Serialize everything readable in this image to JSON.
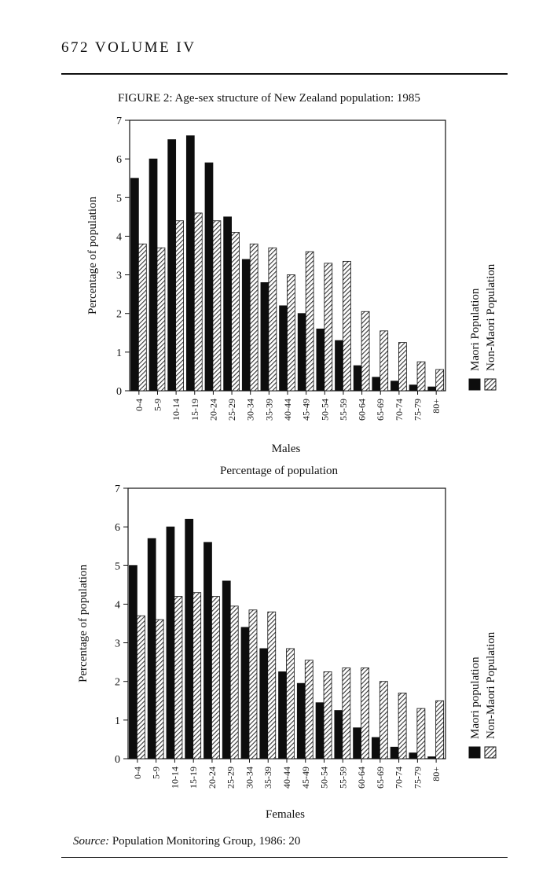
{
  "header": {
    "text": "672 VOLUME IV"
  },
  "figure_title": "FIGURE 2: Age-sex structure of New Zealand population: 1985",
  "source": {
    "label": "Source:",
    "text": "Population Monitoring Group, 1986: 20"
  },
  "colors": {
    "maori": "#0d0d0d",
    "non_maori_hatch": "#333333",
    "background": "#ffffff"
  },
  "chart_data": [
    {
      "type": "bar",
      "title": "",
      "xlabel": "Males",
      "ylabel": "Percentage of population",
      "ylim": [
        0,
        7
      ],
      "yticks": [
        "0",
        "1",
        "2",
        "3",
        "4",
        "5",
        "6",
        "7"
      ],
      "legend_position": "right",
      "categories": [
        "0-4",
        "5-9",
        "10-14",
        "15-19",
        "20-24",
        "25-29",
        "30-34",
        "35-39",
        "40-44",
        "45-49",
        "50-54",
        "55-59",
        "60-64",
        "65-69",
        "70-74",
        "75-79",
        "80+"
      ],
      "series": [
        {
          "name": "Maori Population",
          "pattern": "solid",
          "values": [
            5.5,
            6.0,
            6.5,
            6.6,
            5.9,
            4.5,
            3.4,
            2.8,
            2.2,
            2.0,
            1.6,
            1.3,
            0.65,
            0.35,
            0.25,
            0.15,
            0.1
          ]
        },
        {
          "name": "Non-Maori Population",
          "pattern": "hatched",
          "values": [
            3.8,
            3.7,
            4.4,
            4.6,
            4.4,
            4.1,
            3.8,
            3.7,
            3.0,
            3.6,
            3.3,
            3.35,
            2.05,
            1.55,
            1.25,
            0.75,
            0.55
          ]
        }
      ]
    },
    {
      "type": "bar",
      "title": "Percentage of population",
      "xlabel": "Females",
      "ylabel": "Percentage of population",
      "ylim": [
        0,
        7
      ],
      "yticks": [
        "0",
        "1",
        "2",
        "3",
        "4",
        "5",
        "6",
        "7"
      ],
      "legend_position": "right",
      "categories": [
        "0-4",
        "5-9",
        "10-14",
        "15-19",
        "20-24",
        "25-29",
        "30-34",
        "35-39",
        "40-44",
        "45-49",
        "50-54",
        "55-59",
        "60-64",
        "65-69",
        "70-74",
        "75-79",
        "80+"
      ],
      "series": [
        {
          "name": "Maori population",
          "pattern": "solid",
          "values": [
            5.0,
            5.7,
            6.0,
            6.2,
            5.6,
            4.6,
            3.4,
            2.85,
            2.25,
            1.95,
            1.45,
            1.25,
            0.8,
            0.55,
            0.3,
            0.15,
            0.05
          ]
        },
        {
          "name": "Non-Maori Population",
          "pattern": "hatched",
          "values": [
            3.7,
            3.6,
            4.2,
            4.3,
            4.2,
            3.95,
            3.85,
            3.8,
            2.85,
            2.55,
            2.25,
            2.35,
            2.35,
            2.0,
            1.7,
            1.3,
            1.5
          ]
        }
      ]
    }
  ]
}
